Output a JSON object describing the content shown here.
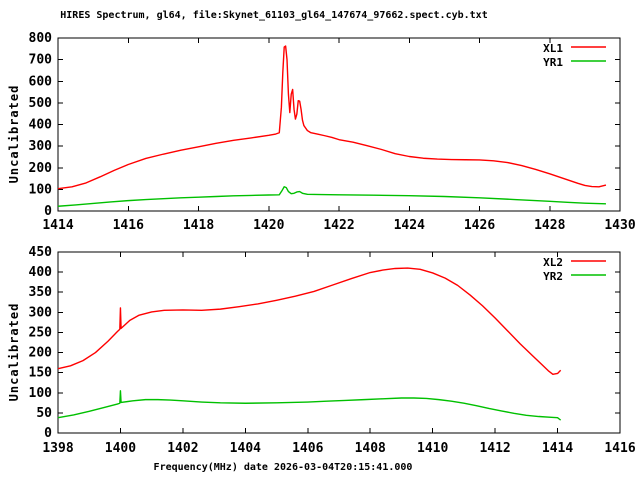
{
  "title": "HIRES Spectrum, gl64, file:Skynet_61103_gl64_147674_97662.spect.cyb.txt",
  "xlabel": "Frequency(MHz) date 2026-03-04T20:15:41.000",
  "colors": {
    "series_red": "#ff0000",
    "series_green": "#00c000",
    "foreground": "#000000",
    "background": "#ffffff"
  },
  "chart_data": [
    {
      "type": "line",
      "ylabel": "Uncalibrated",
      "xlim": [
        1414,
        1430
      ],
      "ylim": [
        0,
        800
      ],
      "xticks": [
        1414,
        1416,
        1418,
        1420,
        1422,
        1424,
        1426,
        1428,
        1430
      ],
      "yticks": [
        0,
        100,
        200,
        300,
        400,
        500,
        600,
        700,
        800
      ],
      "grid": false,
      "legend_position": "top-right",
      "series": [
        {
          "name": "XL1",
          "color": "#ff0000",
          "points": [
            [
              1414.0,
              103
            ],
            [
              1414.4,
              112
            ],
            [
              1414.8,
              130
            ],
            [
              1415.2,
              158
            ],
            [
              1415.6,
              188
            ],
            [
              1416.0,
              215
            ],
            [
              1416.5,
              243
            ],
            [
              1417.0,
              263
            ],
            [
              1417.5,
              281
            ],
            [
              1418.0,
              297
            ],
            [
              1418.5,
              313
            ],
            [
              1419.0,
              327
            ],
            [
              1419.5,
              338
            ],
            [
              1420.0,
              350
            ],
            [
              1420.2,
              356
            ],
            [
              1420.3,
              362
            ],
            [
              1420.36,
              480
            ],
            [
              1420.4,
              640
            ],
            [
              1420.44,
              758
            ],
            [
              1420.48,
              763
            ],
            [
              1420.52,
              700
            ],
            [
              1420.56,
              540
            ],
            [
              1420.6,
              455
            ],
            [
              1420.64,
              540
            ],
            [
              1420.68,
              562
            ],
            [
              1420.72,
              470
            ],
            [
              1420.76,
              425
            ],
            [
              1420.8,
              448
            ],
            [
              1420.84,
              510
            ],
            [
              1420.88,
              508
            ],
            [
              1420.92,
              470
            ],
            [
              1420.96,
              420
            ],
            [
              1421.0,
              395
            ],
            [
              1421.1,
              372
            ],
            [
              1421.2,
              362
            ],
            [
              1421.4,
              355
            ],
            [
              1421.6,
              348
            ],
            [
              1421.8,
              340
            ],
            [
              1422.0,
              330
            ],
            [
              1422.4,
              318
            ],
            [
              1422.8,
              302
            ],
            [
              1423.2,
              285
            ],
            [
              1423.6,
              265
            ],
            [
              1424.0,
              252
            ],
            [
              1424.4,
              244
            ],
            [
              1424.8,
              240
            ],
            [
              1425.2,
              238
            ],
            [
              1425.6,
              237
            ],
            [
              1426.0,
              236
            ],
            [
              1426.4,
              232
            ],
            [
              1426.8,
              224
            ],
            [
              1427.2,
              210
            ],
            [
              1427.6,
              192
            ],
            [
              1428.0,
              172
            ],
            [
              1428.4,
              150
            ],
            [
              1428.8,
              128
            ],
            [
              1429.0,
              118
            ],
            [
              1429.2,
              113
            ],
            [
              1429.4,
              112
            ],
            [
              1429.6,
              120
            ]
          ]
        },
        {
          "name": "YR1",
          "color": "#00c000",
          "points": [
            [
              1414.0,
              22
            ],
            [
              1414.5,
              28
            ],
            [
              1415.0,
              35
            ],
            [
              1415.5,
              42
            ],
            [
              1416.0,
              48
            ],
            [
              1416.5,
              53
            ],
            [
              1417.0,
              57
            ],
            [
              1417.5,
              61
            ],
            [
              1418.0,
              64
            ],
            [
              1418.5,
              67
            ],
            [
              1419.0,
              70
            ],
            [
              1419.5,
              72
            ],
            [
              1420.0,
              74
            ],
            [
              1420.3,
              75
            ],
            [
              1420.38,
              95
            ],
            [
              1420.44,
              112
            ],
            [
              1420.5,
              108
            ],
            [
              1420.56,
              90
            ],
            [
              1420.64,
              80
            ],
            [
              1420.72,
              82
            ],
            [
              1420.8,
              88
            ],
            [
              1420.88,
              90
            ],
            [
              1420.96,
              82
            ],
            [
              1421.1,
              77
            ],
            [
              1421.5,
              76
            ],
            [
              1422.0,
              75
            ],
            [
              1423.0,
              73
            ],
            [
              1424.0,
              71
            ],
            [
              1425.0,
              67
            ],
            [
              1426.0,
              61
            ],
            [
              1427.0,
              53
            ],
            [
              1428.0,
              45
            ],
            [
              1428.5,
              40
            ],
            [
              1429.0,
              36
            ],
            [
              1429.6,
              33
            ]
          ]
        }
      ]
    },
    {
      "type": "line",
      "ylabel": "Uncalibrated",
      "xlim": [
        1398,
        1416
      ],
      "ylim": [
        0,
        450
      ],
      "xticks": [
        1398,
        1400,
        1402,
        1404,
        1406,
        1408,
        1410,
        1412,
        1414,
        1416
      ],
      "yticks": [
        0,
        50,
        100,
        150,
        200,
        250,
        300,
        350,
        400,
        450
      ],
      "grid": false,
      "legend_position": "top-right",
      "series": [
        {
          "name": "XL2",
          "color": "#ff0000",
          "points": [
            [
              1398.0,
              160
            ],
            [
              1398.4,
              167
            ],
            [
              1398.8,
              180
            ],
            [
              1399.2,
              200
            ],
            [
              1399.6,
              228
            ],
            [
              1399.9,
              252
            ],
            [
              1399.98,
              258
            ],
            [
              1400.0,
              311
            ],
            [
              1400.02,
              260
            ],
            [
              1400.3,
              280
            ],
            [
              1400.6,
              293
            ],
            [
              1401.0,
              301
            ],
            [
              1401.4,
              305
            ],
            [
              1402.0,
              306
            ],
            [
              1402.6,
              305
            ],
            [
              1403.2,
              308
            ],
            [
              1403.8,
              314
            ],
            [
              1404.4,
              321
            ],
            [
              1405.0,
              330
            ],
            [
              1405.6,
              340
            ],
            [
              1406.2,
              352
            ],
            [
              1406.8,
              368
            ],
            [
              1407.4,
              384
            ],
            [
              1408.0,
              399
            ],
            [
              1408.4,
              405
            ],
            [
              1408.8,
              409
            ],
            [
              1409.2,
              410
            ],
            [
              1409.6,
              407
            ],
            [
              1410.0,
              398
            ],
            [
              1410.4,
              385
            ],
            [
              1410.8,
              367
            ],
            [
              1411.2,
              343
            ],
            [
              1411.6,
              316
            ],
            [
              1412.0,
              286
            ],
            [
              1412.4,
              254
            ],
            [
              1412.8,
              222
            ],
            [
              1413.2,
              192
            ],
            [
              1413.5,
              170
            ],
            [
              1413.7,
              155
            ],
            [
              1413.85,
              146
            ],
            [
              1414.0,
              148
            ],
            [
              1414.1,
              156
            ]
          ]
        },
        {
          "name": "YR2",
          "color": "#00c000",
          "points": [
            [
              1398.0,
              38
            ],
            [
              1398.5,
              45
            ],
            [
              1399.0,
              54
            ],
            [
              1399.5,
              64
            ],
            [
              1399.9,
              72
            ],
            [
              1399.98,
              74
            ],
            [
              1400.0,
              105
            ],
            [
              1400.02,
              76
            ],
            [
              1400.4,
              80
            ],
            [
              1400.8,
              83
            ],
            [
              1401.2,
              83
            ],
            [
              1401.6,
              82
            ],
            [
              1402.0,
              80
            ],
            [
              1402.6,
              77
            ],
            [
              1403.2,
              75
            ],
            [
              1404.0,
              74
            ],
            [
              1405.0,
              75
            ],
            [
              1406.0,
              77
            ],
            [
              1406.6,
              79
            ],
            [
              1407.2,
              81
            ],
            [
              1407.8,
              83
            ],
            [
              1408.4,
              85
            ],
            [
              1409.0,
              87
            ],
            [
              1409.4,
              87
            ],
            [
              1409.8,
              86
            ],
            [
              1410.2,
              83
            ],
            [
              1410.6,
              79
            ],
            [
              1411.0,
              74
            ],
            [
              1411.4,
              68
            ],
            [
              1411.8,
              61
            ],
            [
              1412.2,
              55
            ],
            [
              1412.6,
              49
            ],
            [
              1413.0,
              44
            ],
            [
              1413.4,
              41
            ],
            [
              1413.8,
              39
            ],
            [
              1414.0,
              38
            ],
            [
              1414.1,
              32
            ]
          ]
        }
      ]
    }
  ]
}
